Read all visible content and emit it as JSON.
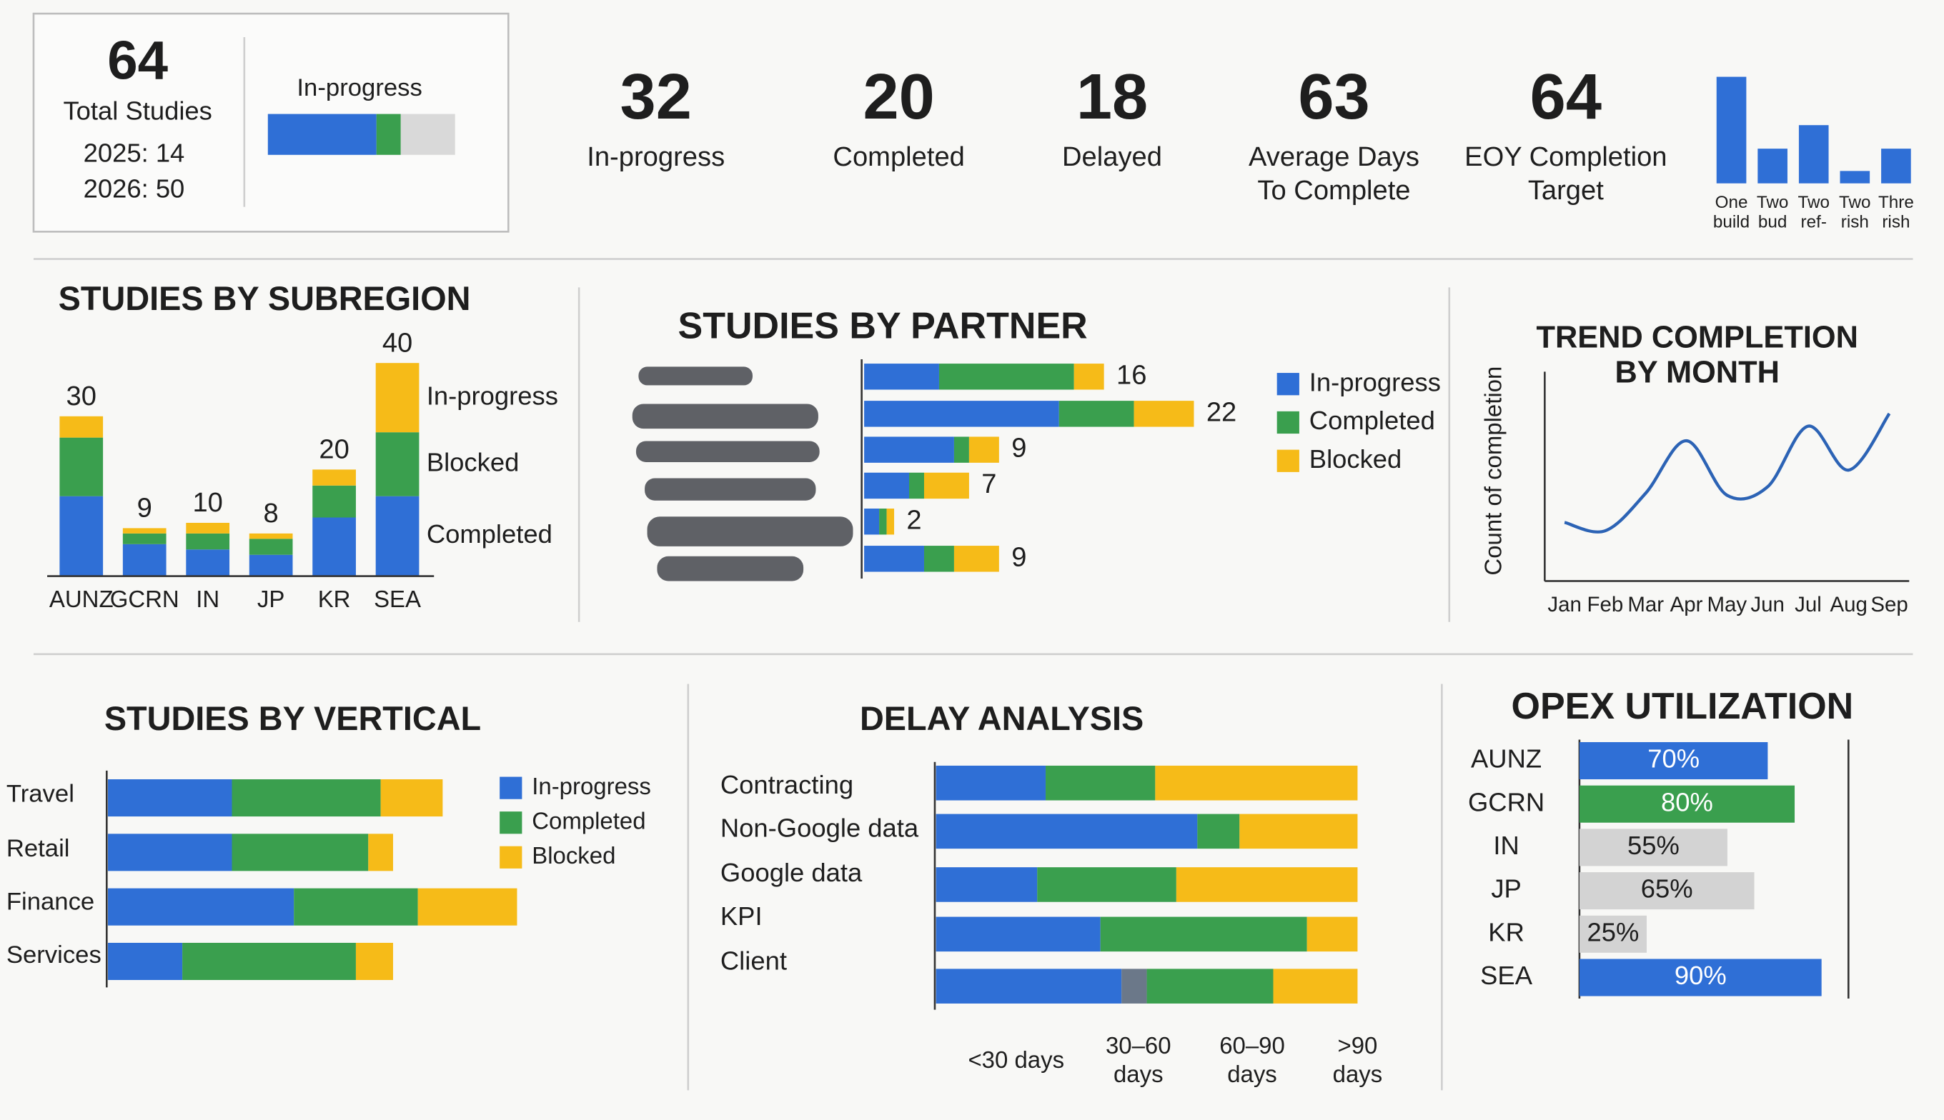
{
  "summary": {
    "total": {
      "value": 64,
      "label": "Total Studies",
      "breakdown": [
        "2025: 14",
        "2026: 50"
      ]
    },
    "kpis": [
      {
        "value": 32,
        "label": [
          "In-progress"
        ]
      },
      {
        "value": 20,
        "label": [
          "Completed"
        ]
      },
      {
        "value": 18,
        "label": [
          "Delayed"
        ]
      },
      {
        "value": 63,
        "label": [
          "Average Days",
          "To Complete"
        ]
      },
      {
        "value": 64,
        "label": [
          "EOY Completion",
          "Target"
        ]
      }
    ]
  },
  "chart_data": [
    {
      "type": "progress",
      "title": "In-progress",
      "xlim": [
        0,
        100
      ],
      "series": [
        {
          "color": "#2f6fd6",
          "values": [
            58
          ]
        },
        {
          "color": "#3a9f4e",
          "values": [
            13
          ]
        },
        {
          "color": "#d9d9d9",
          "values": [
            29
          ]
        }
      ]
    },
    {
      "type": "mini-bar",
      "categories": [
        [
          "One",
          "build"
        ],
        [
          "Two",
          "bud"
        ],
        [
          "Two",
          "ref-"
        ],
        [
          "Two",
          "rish"
        ],
        [
          "Thre",
          "rish"
        ]
      ],
      "values": [
        86,
        28,
        47,
        10,
        28
      ],
      "color": "#2f6fd6",
      "ylim": [
        0,
        86
      ]
    },
    {
      "type": "stacked-column",
      "title": "STUDIES BY SUBREGION",
      "categories": [
        "AUNZ",
        "GCRN",
        "IN",
        "JP",
        "KR",
        "SEA"
      ],
      "series": [
        {
          "name": "Completed",
          "color": "#2f6fd6",
          "values": [
            15,
            6,
            5,
            4,
            11,
            15
          ]
        },
        {
          "name": "Blocked",
          "color": "#3a9f4e",
          "values": [
            11,
            2,
            3,
            3,
            6,
            12
          ]
        },
        {
          "name": "In-progress",
          "color": "#f6bb18",
          "values": [
            4,
            1,
            2,
            1,
            3,
            13
          ]
        }
      ],
      "totals": [
        30,
        9,
        10,
        8,
        20,
        40
      ],
      "ylim": [
        0,
        40
      ],
      "legend": "right"
    },
    {
      "type": "stacked-bar",
      "title": "STUDIES BY PARTNER",
      "categories": [
        null,
        null,
        null,
        null,
        null,
        null
      ],
      "series": [
        {
          "name": "In-progress",
          "color": "#2f6fd6",
          "values": [
            5,
            13,
            6,
            3,
            1,
            4
          ]
        },
        {
          "name": "Completed",
          "color": "#3a9f4e",
          "values": [
            9,
            5,
            1,
            1,
            0.5,
            2
          ]
        },
        {
          "name": "Blocked",
          "color": "#f6bb18",
          "values": [
            2,
            4,
            2,
            3,
            0.5,
            3
          ]
        }
      ],
      "totals": [
        16,
        22,
        9,
        7,
        2,
        9
      ],
      "xlim": [
        0,
        22
      ],
      "legend": "right"
    },
    {
      "type": "line",
      "title": [
        "TREND COMPLETION",
        "BY MONTH"
      ],
      "y_label": "Count of completion",
      "categories": [
        "Jan",
        "Feb",
        "Mar",
        "Apr",
        "May",
        "Jun",
        "Jul",
        "Aug",
        "Sep"
      ],
      "series": [
        {
          "color": "#2c63b5",
          "values": [
            2.8,
            2.4,
            4.2,
            6.7,
            4.1,
            4.5,
            7.4,
            5.3,
            8.0
          ]
        }
      ],
      "ylim": [
        0,
        10
      ]
    },
    {
      "type": "stacked-bar",
      "title": "STUDIES BY VERTICAL",
      "categories": [
        "Travel",
        "Retail",
        "Finance",
        "Services"
      ],
      "series": [
        {
          "name": "In-progress",
          "color": "#2f6fd6",
          "values": [
            10,
            10,
            15,
            6
          ]
        },
        {
          "name": "Completed",
          "color": "#3a9f4e",
          "values": [
            12,
            11,
            10,
            14
          ]
        },
        {
          "name": "Blocked",
          "color": "#f6bb18",
          "values": [
            5,
            2,
            8,
            3
          ]
        }
      ],
      "xlim": [
        0,
        33
      ],
      "legend": "right"
    },
    {
      "type": "stacked-bar",
      "title": "DELAY ANALYSIS",
      "categories": [
        "Contracting",
        "Non-Google data",
        "Google data",
        "KPI",
        "Client"
      ],
      "series": [
        {
          "color": "#2f6fd6",
          "values": [
            26,
            62,
            24,
            39,
            44
          ]
        },
        {
          "color": "#6b7889",
          "values": [
            0,
            0,
            0,
            0,
            6
          ]
        },
        {
          "color": "#3a9f4e",
          "values": [
            26,
            10,
            33,
            49,
            30
          ]
        },
        {
          "color": "#f6bb18",
          "values": [
            48,
            28,
            43,
            12,
            20
          ]
        }
      ],
      "xlim": [
        0,
        100
      ],
      "xticks": [
        {
          "value": 19,
          "label": [
            "<30 days"
          ]
        },
        {
          "value": 48,
          "label": [
            "30–60",
            "days"
          ]
        },
        {
          "value": 75,
          "label": [
            "60–90",
            "days"
          ]
        },
        {
          "value": 100,
          "label": [
            ">90",
            "days"
          ]
        }
      ]
    },
    {
      "type": "bar-h",
      "title": "OPEX UTILIZATION",
      "categories": [
        "AUNZ",
        "GCRN",
        "IN",
        "JP",
        "KR",
        "SEA"
      ],
      "values": [
        70,
        80,
        55,
        65,
        25,
        90
      ],
      "value_labels": [
        "70%",
        "80%",
        "55%",
        "65%",
        "25%",
        "90%"
      ],
      "colors": [
        "#2f6fd6",
        "#3a9f4e",
        "#d3d3d3",
        "#d3d3d3",
        "#d3d3d3",
        "#2f6fd6"
      ],
      "xlim": [
        0,
        100
      ]
    }
  ]
}
